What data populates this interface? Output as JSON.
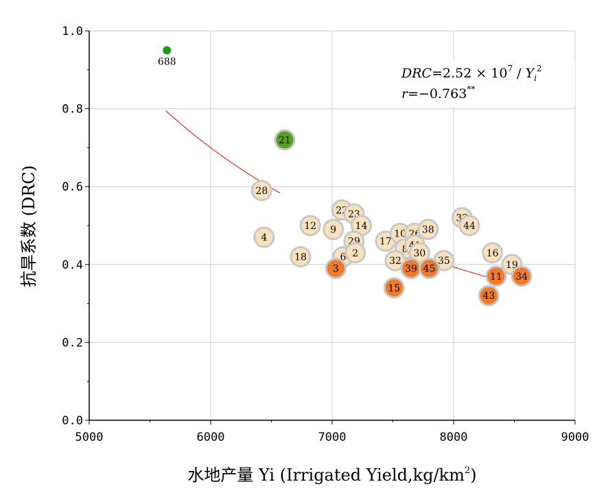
{
  "chart_data": {
    "type": "scatter",
    "xlabel": "水地产量 Yi (Irrigated Yield,kg/km²)",
    "xlabel_main": "水地产量 Yi (Irrigated Yield,kg/km",
    "xlabel_sup": "2",
    "xlabel_end": ")",
    "ylabel": "抗旱系数 (DRC)",
    "xlim": [
      5000,
      9000
    ],
    "ylim": [
      0.0,
      1.0
    ],
    "x_ticks": [
      5000,
      6000,
      7000,
      8000,
      9000
    ],
    "y_ticks": [
      0.0,
      0.2,
      0.4,
      0.6,
      0.8,
      1.0
    ],
    "x_tick_labels": [
      "5000",
      "6000",
      "7000",
      "8000",
      "9000"
    ],
    "y_tick_labels": [
      "0.0",
      "0.2",
      "0.4",
      "0.6",
      "0.8",
      "1.0"
    ],
    "grid": true,
    "colors": {
      "light": "#f8e2bd",
      "orange": "#ee7a2a",
      "green": "#5aa020",
      "dark_green": "#1a9a1a",
      "ring": "#c8c8c8",
      "fit": "#e83030",
      "grid": "#cccccc"
    },
    "equation": {
      "lhs": "DRC",
      "eq_mid": "=2.52 × 10",
      "exp": "7",
      "div": " / ",
      "var": "Y",
      "sub": "i",
      "sup": "2",
      "r_label": "r",
      "r_value": "=−0.763",
      "r_stars": "**"
    },
    "fit_curve": {
      "formula": "DRC = 2.52e7 / Yi^2",
      "segments": [
        [
          5630,
          6570
        ],
        [
          7560,
          8330
        ]
      ]
    },
    "points": [
      {
        "label": "688",
        "x": 5640,
        "y": 0.95,
        "group": "dark_green"
      },
      {
        "label": "21",
        "x": 6610,
        "y": 0.72,
        "group": "green"
      },
      {
        "label": "28",
        "x": 6420,
        "y": 0.59,
        "group": "light"
      },
      {
        "label": "4",
        "x": 6440,
        "y": 0.47,
        "group": "light"
      },
      {
        "label": "12",
        "x": 6820,
        "y": 0.5,
        "group": "light"
      },
      {
        "label": "18",
        "x": 6740,
        "y": 0.42,
        "group": "light"
      },
      {
        "label": "22",
        "x": 7080,
        "y": 0.54,
        "group": "light"
      },
      {
        "label": "23",
        "x": 7180,
        "y": 0.53,
        "group": "light"
      },
      {
        "label": "9",
        "x": 7010,
        "y": 0.49,
        "group": "light"
      },
      {
        "label": "14",
        "x": 7240,
        "y": 0.5,
        "group": "light"
      },
      {
        "label": "29",
        "x": 7180,
        "y": 0.46,
        "group": "light"
      },
      {
        "label": "6",
        "x": 7090,
        "y": 0.42,
        "group": "light"
      },
      {
        "label": "2",
        "x": 7190,
        "y": 0.43,
        "group": "light"
      },
      {
        "label": "17",
        "x": 7440,
        "y": 0.46,
        "group": "light"
      },
      {
        "label": "10",
        "x": 7560,
        "y": 0.48,
        "group": "light"
      },
      {
        "label": "26",
        "x": 7680,
        "y": 0.48,
        "group": "light"
      },
      {
        "label": "38",
        "x": 7790,
        "y": 0.49,
        "group": "light"
      },
      {
        "label": "8",
        "x": 7600,
        "y": 0.44,
        "group": "light"
      },
      {
        "label": "41",
        "x": 7680,
        "y": 0.45,
        "group": "light"
      },
      {
        "label": "30",
        "x": 7720,
        "y": 0.43,
        "group": "light"
      },
      {
        "label": "32",
        "x": 7520,
        "y": 0.41,
        "group": "light"
      },
      {
        "label": "35",
        "x": 7920,
        "y": 0.41,
        "group": "light"
      },
      {
        "label": "33",
        "x": 8070,
        "y": 0.52,
        "group": "light"
      },
      {
        "label": "44",
        "x": 8130,
        "y": 0.5,
        "group": "light"
      },
      {
        "label": "16",
        "x": 8320,
        "y": 0.43,
        "group": "light"
      },
      {
        "label": "19",
        "x": 8480,
        "y": 0.4,
        "group": "light"
      },
      {
        "label": "3",
        "x": 7030,
        "y": 0.39,
        "group": "orange"
      },
      {
        "label": "39",
        "x": 7650,
        "y": 0.39,
        "group": "orange"
      },
      {
        "label": "45",
        "x": 7800,
        "y": 0.39,
        "group": "orange"
      },
      {
        "label": "15",
        "x": 7510,
        "y": 0.34,
        "group": "orange"
      },
      {
        "label": "11",
        "x": 8350,
        "y": 0.37,
        "group": "orange"
      },
      {
        "label": "34",
        "x": 8560,
        "y": 0.37,
        "group": "orange"
      },
      {
        "label": "43",
        "x": 8290,
        "y": 0.32,
        "group": "orange"
      }
    ]
  }
}
